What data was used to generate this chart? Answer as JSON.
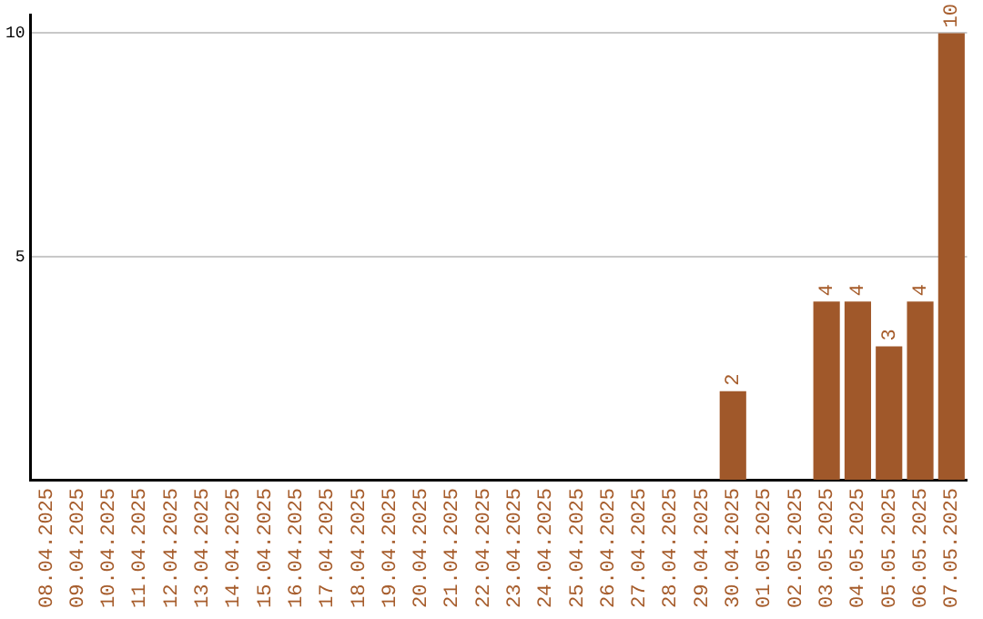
{
  "chart_data": {
    "type": "bar",
    "categories": [
      "08.04.2025",
      "09.04.2025",
      "10.04.2025",
      "11.04.2025",
      "12.04.2025",
      "13.04.2025",
      "14.04.2025",
      "15.04.2025",
      "16.04.2025",
      "17.04.2025",
      "18.04.2025",
      "19.04.2025",
      "20.04.2025",
      "21.04.2025",
      "22.04.2025",
      "23.04.2025",
      "24.04.2025",
      "25.04.2025",
      "26.04.2025",
      "27.04.2025",
      "28.04.2025",
      "29.04.2025",
      "30.04.2025",
      "01.05.2025",
      "02.05.2025",
      "03.05.2025",
      "04.05.2025",
      "05.05.2025",
      "06.05.2025",
      "07.05.2025"
    ],
    "values": [
      0,
      0,
      0,
      0,
      0,
      0,
      0,
      0,
      0,
      0,
      0,
      0,
      0,
      0,
      0,
      0,
      0,
      0,
      0,
      0,
      0,
      0,
      2,
      0,
      0,
      4,
      4,
      3,
      4,
      10
    ],
    "value_labels": [
      null,
      null,
      null,
      null,
      null,
      null,
      null,
      null,
      null,
      null,
      null,
      null,
      null,
      null,
      null,
      null,
      null,
      null,
      null,
      null,
      null,
      null,
      "2",
      null,
      null,
      "4",
      "4",
      "3",
      "4",
      "10"
    ],
    "color": "#a0582a",
    "ylim": [
      0,
      10.4
    ],
    "yticks": [
      {
        "value": 0,
        "label": null
      },
      5,
      10
    ],
    "grid": "y",
    "legend": false
  }
}
